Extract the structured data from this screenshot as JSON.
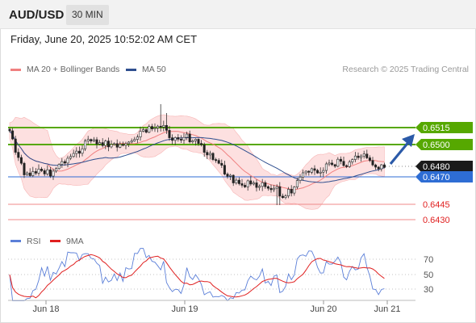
{
  "header": {
    "symbol": "AUD/USD",
    "timeframe": "30 MIN"
  },
  "datetime": "Friday, June 20, 2025 10:52:02 AM CET",
  "legend": [
    {
      "label": "MA 20 + Bollinger Bands",
      "color": "#f08080"
    },
    {
      "label": "MA 50",
      "color": "#2f4f8f"
    }
  ],
  "credit": "Research © 2025 Trading Central",
  "colors": {
    "green": "#56a800",
    "blue": "#2e6dd4",
    "red": "#e02020",
    "dark": "#1a1a1a",
    "band": "#fde0e0"
  },
  "levels": [
    {
      "label": "0.6515",
      "type": "resistance"
    },
    {
      "label": "0.6500",
      "type": "resistance"
    },
    {
      "label": "0.6480",
      "type": "last-price"
    },
    {
      "label": "0.6470",
      "type": "pivot"
    },
    {
      "label": "0.6445",
      "type": "support"
    },
    {
      "label": "0.6430",
      "type": "support"
    }
  ],
  "rsi_legend": [
    {
      "label": "RSI",
      "color": "#5b7fd8"
    },
    {
      "label": "9MA",
      "color": "#e02020"
    }
  ],
  "rsi_levels": [
    "70",
    "50",
    "30"
  ],
  "x_labels": [
    "Jun 18",
    "Jun 19",
    "Jun 20",
    "Jun 21"
  ],
  "chart_data": [
    {
      "type": "candlestick",
      "title": "AUD/USD 30 MIN",
      "y_levels": [
        0.6515,
        0.65,
        0.648,
        0.647,
        0.6445,
        0.643
      ],
      "x_ticks": [
        "Jun 18",
        "Jun 19",
        "Jun 20",
        "Jun 21"
      ],
      "series": [
        {
          "name": "MA 20 + Bollinger Bands"
        },
        {
          "name": "MA 50"
        }
      ],
      "annotation": "Bullish arrow pointing toward 0.6515"
    },
    {
      "type": "line",
      "series": [
        {
          "name": "RSI"
        },
        {
          "name": "9MA"
        }
      ],
      "y_ticks": [
        70,
        50,
        30
      ]
    }
  ]
}
